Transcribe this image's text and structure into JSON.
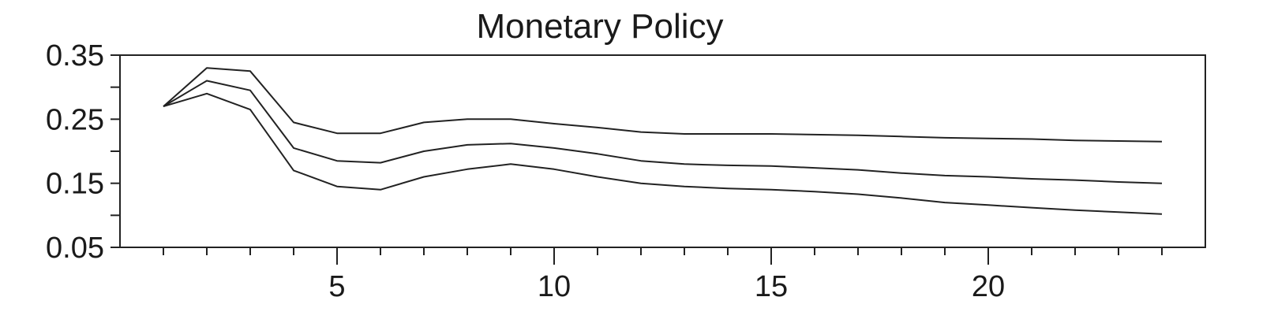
{
  "chart_data": {
    "type": "line",
    "title": "Monetary Policy",
    "xlabel": "",
    "ylabel": "",
    "xlim": [
      0,
      25
    ],
    "ylim": [
      0.05,
      0.35
    ],
    "x_ticks": [
      5,
      10,
      15,
      20
    ],
    "x_tick_labels": [
      "5",
      "10",
      "15",
      "20"
    ],
    "x_minor_ticks": [
      1,
      2,
      3,
      4,
      5,
      6,
      7,
      8,
      9,
      10,
      11,
      12,
      13,
      14,
      15,
      16,
      17,
      18,
      19,
      20,
      21,
      22,
      23,
      24
    ],
    "y_ticks": [
      0.05,
      0.15,
      0.25,
      0.35
    ],
    "y_tick_labels": [
      "0.05",
      "0.15",
      "0.25",
      "0.35"
    ],
    "y_minor_ticks": [
      0.1,
      0.2,
      0.3
    ],
    "grid": false,
    "legend": false,
    "x": [
      1,
      2,
      3,
      4,
      5,
      6,
      7,
      8,
      9,
      10,
      11,
      12,
      13,
      14,
      15,
      16,
      17,
      18,
      19,
      20,
      21,
      22,
      23,
      24
    ],
    "series": [
      {
        "values": [
          0.27,
          0.33,
          0.325,
          0.245,
          0.228,
          0.228,
          0.245,
          0.25,
          0.25,
          0.243,
          0.237,
          0.23,
          0.227,
          0.227,
          0.227,
          0.226,
          0.225,
          0.223,
          0.221,
          0.22,
          0.219,
          0.217,
          0.216,
          0.215
        ]
      },
      {
        "values": [
          0.27,
          0.31,
          0.295,
          0.205,
          0.185,
          0.182,
          0.2,
          0.21,
          0.212,
          0.205,
          0.196,
          0.185,
          0.18,
          0.178,
          0.177,
          0.174,
          0.171,
          0.166,
          0.162,
          0.16,
          0.157,
          0.155,
          0.152,
          0.15
        ]
      },
      {
        "values": [
          0.27,
          0.29,
          0.265,
          0.17,
          0.145,
          0.14,
          0.16,
          0.172,
          0.18,
          0.172,
          0.16,
          0.15,
          0.145,
          0.142,
          0.14,
          0.137,
          0.133,
          0.127,
          0.12,
          0.116,
          0.112,
          0.108,
          0.105,
          0.102
        ]
      }
    ],
    "colors": {
      "line": "#222222",
      "frame": "#222222",
      "text": "#1a1a1a"
    }
  }
}
